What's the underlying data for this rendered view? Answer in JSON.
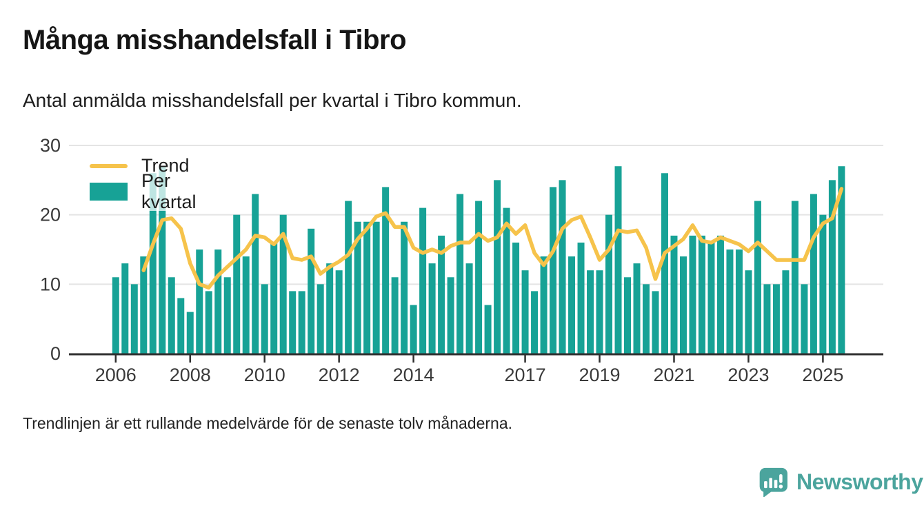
{
  "header": {
    "title": "Många misshandelsfall i Tibro",
    "subtitle": "Antal anmälda misshandelsfall per kvartal i Tibro kommun."
  },
  "legend": {
    "trend_label": "Trend",
    "bars_label": "Per kvartal"
  },
  "footer": {
    "note": "Trendlinjen är ett rullande medelvärde för de senaste tolv månaderna."
  },
  "brand": {
    "name": "Newsworthy"
  },
  "colors": {
    "bar": "#17a296",
    "trend": "#f6c34b",
    "gridline": "#e4e4e4",
    "axis": "#2f2f2f",
    "tick_label": "#3a3a3a",
    "logo": "#4ba49d"
  },
  "chart_data": {
    "type": "bar",
    "title": "Många misshandelsfall i Tibro",
    "subtitle": "Antal anmälda misshandelsfall per kvartal i Tibro kommun.",
    "xlabel": "",
    "ylabel": "",
    "ylim": [
      0,
      30
    ],
    "y_ticks": [
      0,
      10,
      20,
      30
    ],
    "grid": true,
    "legend_position": "top-left",
    "categories": [
      "2006 Q1",
      "2006 Q2",
      "2006 Q3",
      "2006 Q4",
      "2007 Q1",
      "2007 Q2",
      "2007 Q3",
      "2007 Q4",
      "2008 Q1",
      "2008 Q2",
      "2008 Q3",
      "2008 Q4",
      "2009 Q1",
      "2009 Q2",
      "2009 Q3",
      "2009 Q4",
      "2010 Q1",
      "2010 Q2",
      "2010 Q3",
      "2010 Q4",
      "2011 Q1",
      "2011 Q2",
      "2011 Q3",
      "2011 Q4",
      "2012 Q1",
      "2012 Q2",
      "2012 Q3",
      "2012 Q4",
      "2013 Q1",
      "2013 Q2",
      "2013 Q3",
      "2013 Q4",
      "2014 Q1",
      "2014 Q2",
      "2014 Q3",
      "2014 Q4",
      "2015 Q1",
      "2015 Q2",
      "2015 Q3",
      "2015 Q4",
      "2016 Q1",
      "2016 Q2",
      "2016 Q3",
      "2016 Q4",
      "2017 Q1",
      "2017 Q2",
      "2017 Q3",
      "2017 Q4",
      "2018 Q1",
      "2018 Q2",
      "2018 Q3",
      "2018 Q4",
      "2019 Q1",
      "2019 Q2",
      "2019 Q3",
      "2019 Q4",
      "2020 Q1",
      "2020 Q2",
      "2020 Q3",
      "2020 Q4",
      "2021 Q1",
      "2021 Q2",
      "2021 Q3",
      "2021 Q4",
      "2022 Q1",
      "2022 Q2",
      "2022 Q3",
      "2022 Q4",
      "2023 Q1",
      "2023 Q2",
      "2023 Q3",
      "2023 Q4",
      "2024 Q1",
      "2024 Q2",
      "2024 Q3",
      "2024 Q4",
      "2025 Q1",
      "2025 Q2",
      "2025 Q3"
    ],
    "series": [
      {
        "name": "Per kvartal",
        "type": "bar",
        "values": [
          11,
          13,
          10,
          14,
          26,
          27,
          11,
          8,
          6,
          15,
          9,
          15,
          11,
          20,
          14,
          23,
          10,
          16,
          20,
          9,
          9,
          18,
          10,
          13,
          12,
          22,
          19,
          19,
          19,
          24,
          11,
          19,
          7,
          21,
          13,
          17,
          11,
          23,
          13,
          22,
          7,
          25,
          21,
          16,
          12,
          9,
          14,
          24,
          25,
          14,
          16,
          12,
          12,
          20,
          27,
          11,
          13,
          10,
          9,
          26,
          17,
          14,
          17,
          17,
          16,
          17,
          15,
          15,
          12,
          22,
          10,
          10,
          12,
          22,
          10,
          23,
          20,
          25,
          27
        ]
      },
      {
        "name": "Trend",
        "type": "line",
        "start_index": 3,
        "values": [
          12,
          15.75,
          19.25,
          19.5,
          18,
          13,
          10,
          9.5,
          11.25,
          12.5,
          13.75,
          15,
          17,
          16.75,
          15.75,
          17.25,
          13.75,
          13.5,
          14,
          11.5,
          12.5,
          13.25,
          14.25,
          16.5,
          18,
          19.75,
          20.25,
          18.25,
          18.25,
          15.25,
          14.5,
          15,
          14.5,
          15.5,
          16,
          16,
          17.25,
          16.25,
          16.75,
          18.75,
          17.25,
          18.5,
          14.5,
          12.75,
          14.75,
          18,
          19.25,
          19.75,
          16.75,
          13.5,
          15,
          17.75,
          17.5,
          17.75,
          15.25,
          10.75,
          14.5,
          15.5,
          16.5,
          18.5,
          16.25,
          16,
          16.75,
          16.25,
          15.75,
          14.75,
          16,
          14.75,
          13.5,
          13.5,
          13.5,
          13.5,
          16.75,
          18.75,
          19.5,
          23.75
        ]
      }
    ],
    "x_ticks": [
      {
        "label": "2006",
        "quarter_index": 0
      },
      {
        "label": "2008",
        "quarter_index": 8
      },
      {
        "label": "2010",
        "quarter_index": 16
      },
      {
        "label": "2012",
        "quarter_index": 24
      },
      {
        "label": "2014",
        "quarter_index": 32
      },
      {
        "label": "2017",
        "quarter_index": 44
      },
      {
        "label": "2019",
        "quarter_index": 52
      },
      {
        "label": "2021",
        "quarter_index": 60
      },
      {
        "label": "2023",
        "quarter_index": 68
      },
      {
        "label": "2025",
        "quarter_index": 76
      }
    ]
  }
}
